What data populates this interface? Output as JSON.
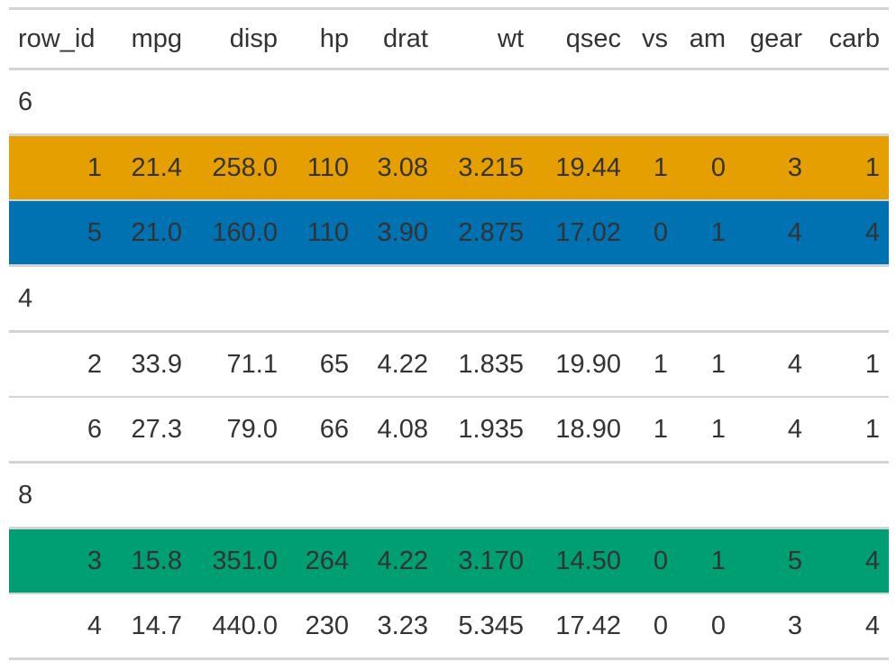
{
  "columns": [
    "row_id",
    "mpg",
    "disp",
    "hp",
    "drat",
    "wt",
    "qsec",
    "vs",
    "am",
    "gear",
    "carb"
  ],
  "groups": [
    {
      "label": "6",
      "rows": [
        {
          "cells": [
            "1",
            "21.4",
            "258.0",
            "110",
            "3.08",
            "3.215",
            "19.44",
            "1",
            "0",
            "3",
            "1"
          ],
          "highlight": "#E69F00"
        },
        {
          "cells": [
            "5",
            "21.0",
            "160.0",
            "110",
            "3.90",
            "2.875",
            "17.02",
            "0",
            "1",
            "4",
            "4"
          ],
          "highlight": "#0072B2"
        }
      ]
    },
    {
      "label": "4",
      "rows": [
        {
          "cells": [
            "2",
            "33.9",
            "71.1",
            "65",
            "4.22",
            "1.835",
            "19.90",
            "1",
            "1",
            "4",
            "1"
          ],
          "highlight": null
        },
        {
          "cells": [
            "6",
            "27.3",
            "79.0",
            "66",
            "4.08",
            "1.935",
            "18.90",
            "1",
            "1",
            "4",
            "1"
          ],
          "highlight": null
        }
      ]
    },
    {
      "label": "8",
      "rows": [
        {
          "cells": [
            "3",
            "15.8",
            "351.0",
            "264",
            "4.22",
            "3.170",
            "14.50",
            "0",
            "1",
            "5",
            "4"
          ],
          "highlight": "#009E73"
        },
        {
          "cells": [
            "4",
            "14.7",
            "440.0",
            "230",
            "3.23",
            "5.345",
            "17.42",
            "0",
            "0",
            "3",
            "4"
          ],
          "highlight": null
        }
      ]
    }
  ]
}
